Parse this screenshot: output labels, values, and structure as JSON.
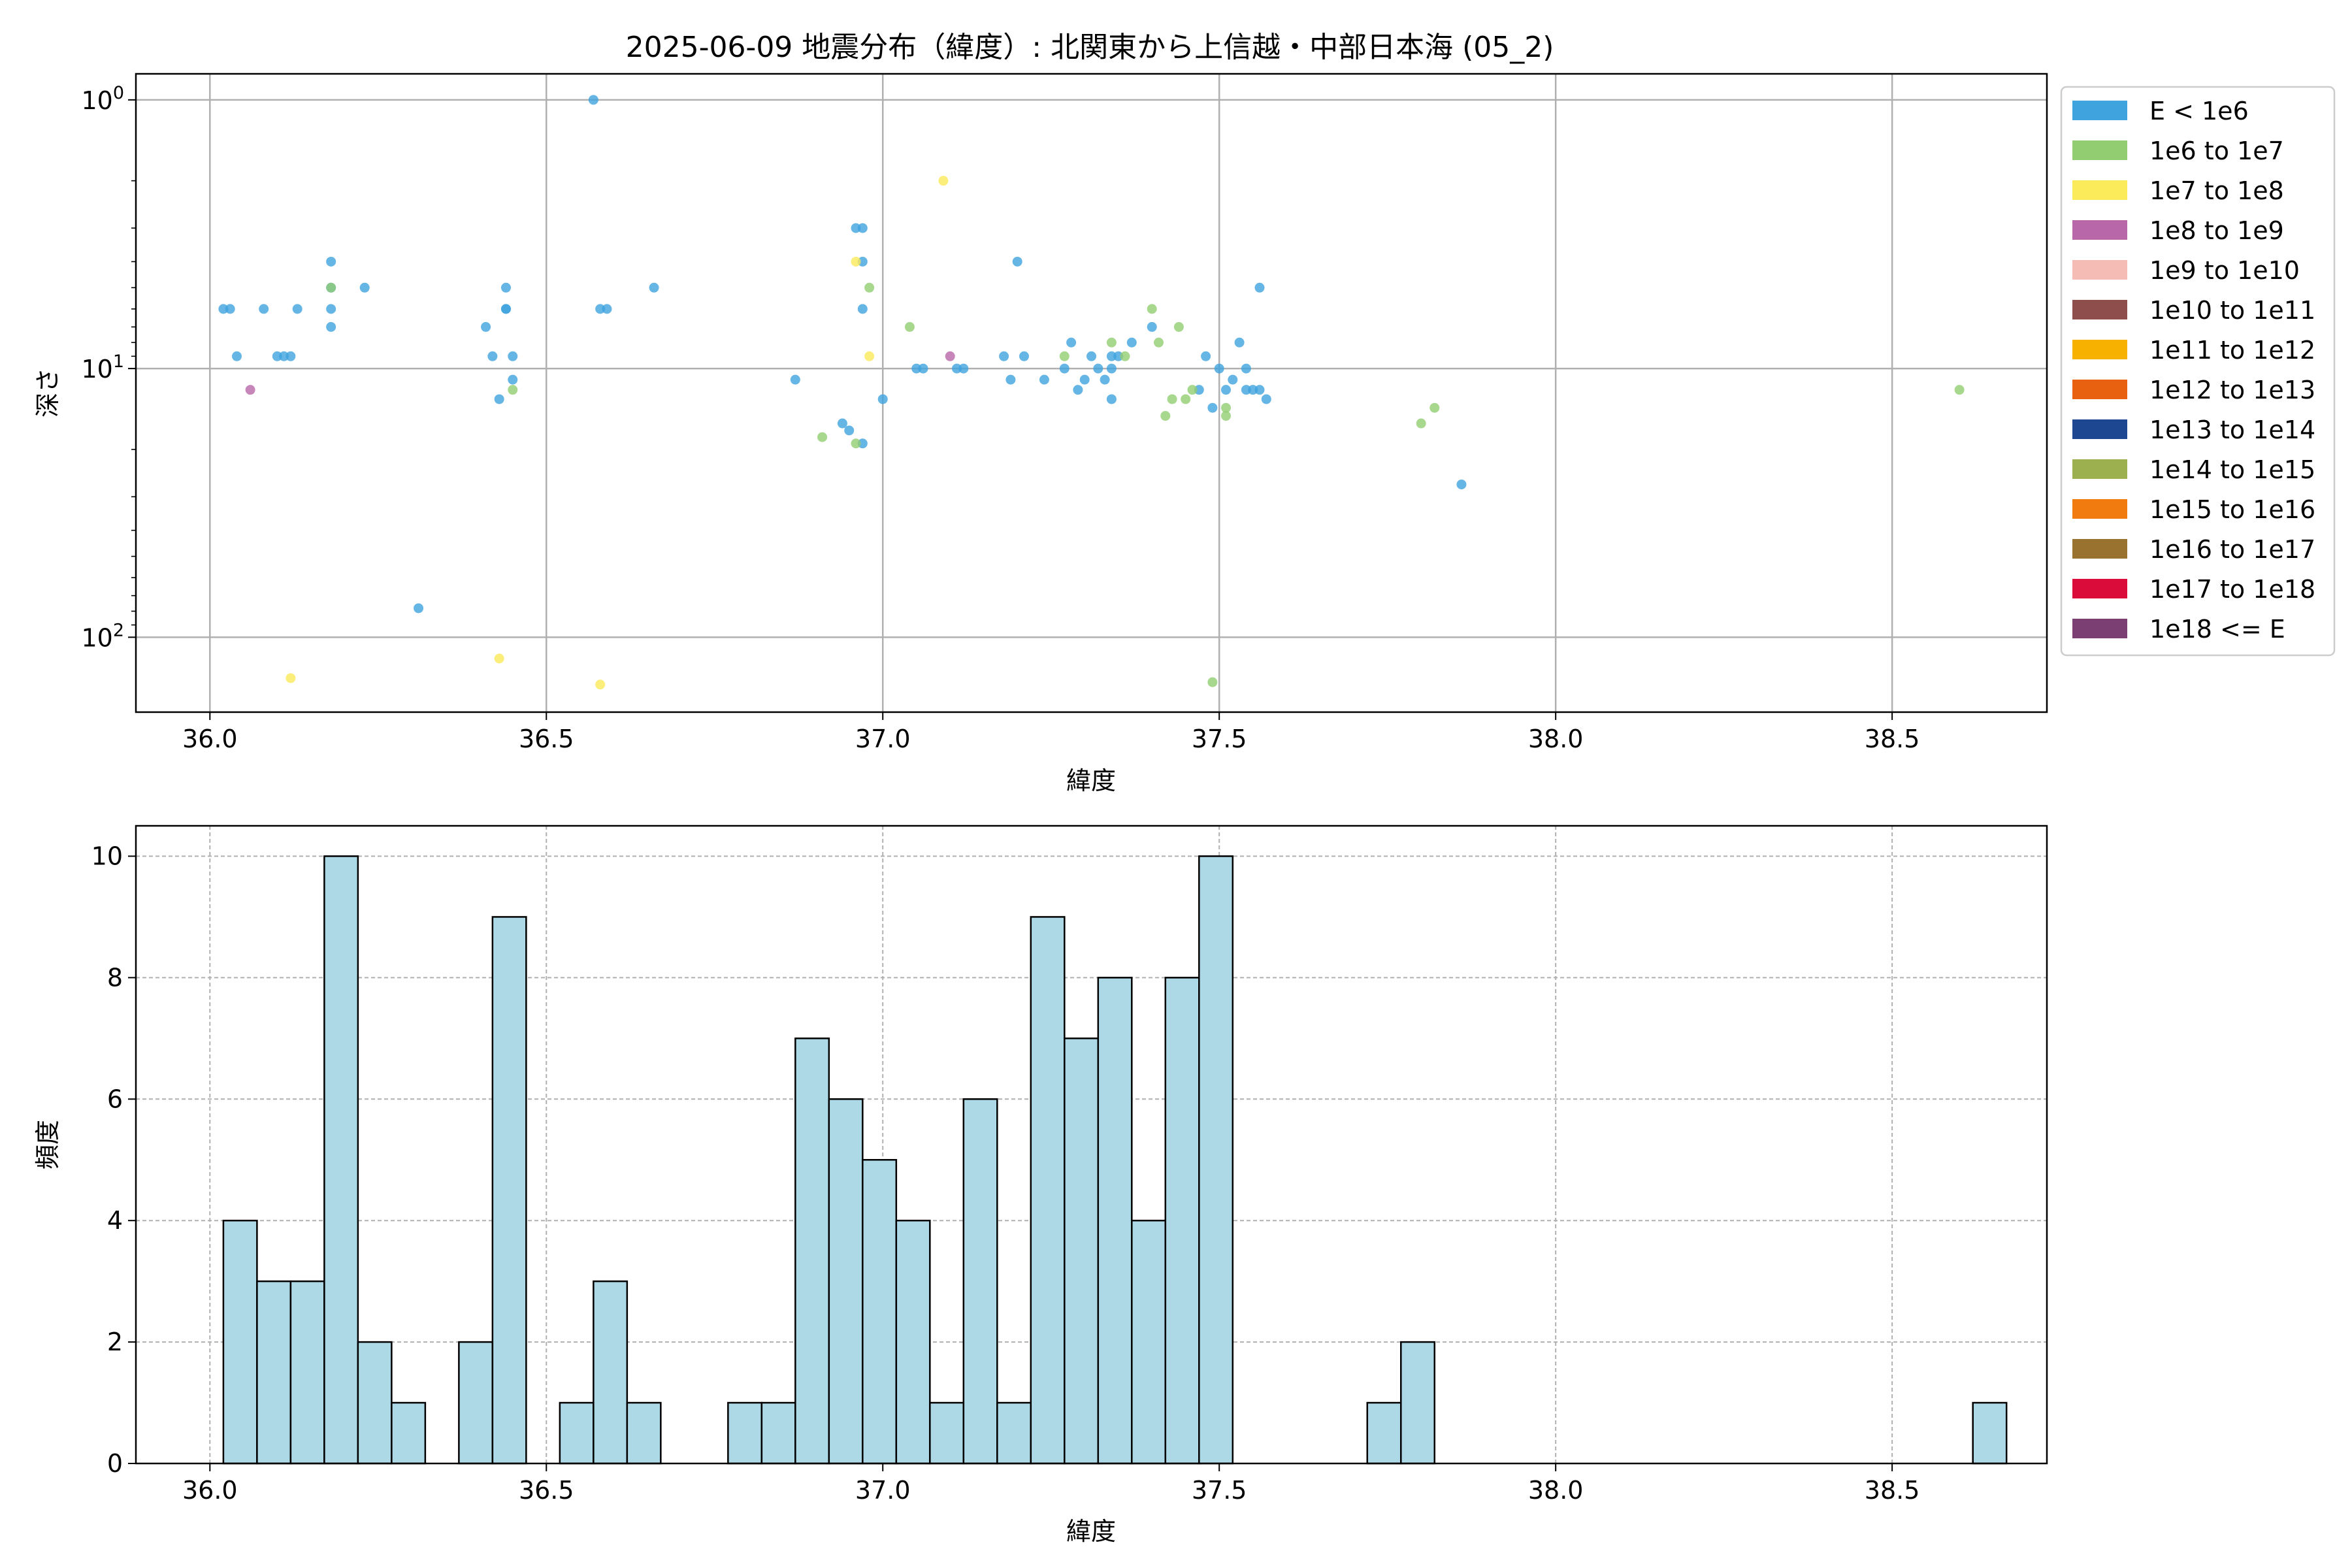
{
  "chart_data": [
    {
      "type": "scatter",
      "title": "2025-06-09 地震分布（緯度）: 北関東から上信越・中部日本海 (05_2)",
      "xlabel": "緯度",
      "ylabel": "深さ",
      "xlim": [
        35.89,
        38.73
      ],
      "ylim": [
        190,
        0.8
      ],
      "yscale": "log",
      "y_inverted": true,
      "grid": true,
      "legend_position": "outside-right",
      "xticks": [
        "36.0",
        "36.5",
        "37.0",
        "37.5",
        "38.0",
        "38.5"
      ],
      "xtick_values": [
        36.0,
        36.5,
        37.0,
        37.5,
        38.0,
        38.5
      ],
      "ytick_values": [
        1,
        10,
        100
      ],
      "ytick_labels": [
        {
          "base": "10",
          "exp": "0"
        },
        {
          "base": "10",
          "exp": "1"
        },
        {
          "base": "10",
          "exp": "2"
        }
      ],
      "legend": [
        {
          "label": "E < 1e6",
          "color": "#3fa3de"
        },
        {
          "label": "1e6 to 1e7",
          "color": "#92cd72"
        },
        {
          "label": "1e7 to 1e8",
          "color": "#fbea5a"
        },
        {
          "label": "1e8 to 1e9",
          "color": "#b868a8"
        },
        {
          "label": "1e9 to 1e10",
          "color": "#f5bcb6"
        },
        {
          "label": "1e10 to 1e11",
          "color": "#8e4e4b"
        },
        {
          "label": "1e11 to 1e12",
          "color": "#f7b100"
        },
        {
          "label": "1e12 to 1e13",
          "color": "#e86110"
        },
        {
          "label": "1e13 to 1e14",
          "color": "#1d4791"
        },
        {
          "label": "1e14 to 1e15",
          "color": "#9cb050"
        },
        {
          "label": "1e15 to 1e16",
          "color": "#f27b10"
        },
        {
          "label": "1e16 to 1e17",
          "color": "#997230"
        },
        {
          "label": "1e17 to 1e18",
          "color": "#da0c3a"
        },
        {
          "label": "1e18 <= E",
          "color": "#7b3f74"
        }
      ],
      "series": [
        {
          "name": "E < 1e6",
          "color": "#3fa3de",
          "points": [
            [
              36.02,
              6
            ],
            [
              36.03,
              6
            ],
            [
              36.04,
              9
            ],
            [
              36.08,
              6
            ],
            [
              36.1,
              9
            ],
            [
              36.11,
              9
            ],
            [
              36.12,
              9
            ],
            [
              36.13,
              6
            ],
            [
              36.18,
              4
            ],
            [
              36.18,
              5
            ],
            [
              36.18,
              6
            ],
            [
              36.18,
              7
            ],
            [
              36.23,
              5
            ],
            [
              36.31,
              78
            ],
            [
              36.41,
              7
            ],
            [
              36.42,
              9
            ],
            [
              36.43,
              13
            ],
            [
              36.44,
              5
            ],
            [
              36.44,
              6
            ],
            [
              36.45,
              9
            ],
            [
              36.45,
              11
            ],
            [
              36.44,
              6
            ],
            [
              36.57,
              1.0
            ],
            [
              36.58,
              6
            ],
            [
              36.59,
              6
            ],
            [
              36.66,
              5
            ],
            [
              36.87,
              11
            ],
            [
              36.94,
              16
            ],
            [
              36.95,
              17
            ],
            [
              36.96,
              3
            ],
            [
              36.97,
              3
            ],
            [
              36.97,
              4
            ],
            [
              36.97,
              6
            ],
            [
              36.97,
              19
            ],
            [
              37.0,
              13
            ],
            [
              37.05,
              10
            ],
            [
              37.06,
              10
            ],
            [
              37.11,
              10
            ],
            [
              37.12,
              10
            ],
            [
              37.18,
              9
            ],
            [
              37.19,
              11
            ],
            [
              37.2,
              4
            ],
            [
              37.21,
              9
            ],
            [
              37.24,
              11
            ],
            [
              37.27,
              10
            ],
            [
              37.28,
              8
            ],
            [
              37.29,
              12
            ],
            [
              37.3,
              11
            ],
            [
              37.31,
              9
            ],
            [
              37.32,
              10
            ],
            [
              37.33,
              11
            ],
            [
              37.34,
              9
            ],
            [
              37.34,
              10
            ],
            [
              37.34,
              13
            ],
            [
              37.35,
              9
            ],
            [
              37.37,
              8
            ],
            [
              37.4,
              7
            ],
            [
              37.47,
              12
            ],
            [
              37.48,
              9
            ],
            [
              37.49,
              14
            ],
            [
              37.5,
              10
            ],
            [
              37.51,
              12
            ],
            [
              37.52,
              11
            ],
            [
              37.53,
              8
            ],
            [
              37.54,
              10
            ],
            [
              37.54,
              12
            ],
            [
              37.55,
              12
            ],
            [
              37.56,
              5
            ],
            [
              37.56,
              12
            ],
            [
              37.57,
              13
            ],
            [
              37.86,
              27
            ]
          ]
        },
        {
          "name": "1e6 to 1e7",
          "color": "#92cd72",
          "points": [
            [
              36.18,
              5
            ],
            [
              36.45,
              12
            ],
            [
              36.91,
              18
            ],
            [
              36.96,
              19
            ],
            [
              36.98,
              5
            ],
            [
              37.04,
              7
            ],
            [
              37.27,
              9
            ],
            [
              37.34,
              8
            ],
            [
              37.36,
              9
            ],
            [
              37.4,
              6
            ],
            [
              37.41,
              8
            ],
            [
              37.42,
              15
            ],
            [
              37.43,
              13
            ],
            [
              37.44,
              7
            ],
            [
              37.45,
              13
            ],
            [
              37.46,
              12
            ],
            [
              37.51,
              15
            ],
            [
              37.51,
              14
            ],
            [
              37.8,
              16
            ],
            [
              37.82,
              14
            ],
            [
              37.49,
              147
            ],
            [
              38.6,
              12
            ]
          ]
        },
        {
          "name": "1e7 to 1e8",
          "color": "#fbea5a",
          "points": [
            [
              36.12,
              142
            ],
            [
              36.43,
              120
            ],
            [
              36.58,
              150
            ],
            [
              36.96,
              4
            ],
            [
              36.98,
              9
            ],
            [
              37.09,
              2
            ]
          ]
        },
        {
          "name": "1e8 to 1e9",
          "color": "#b868a8",
          "points": [
            [
              36.06,
              12
            ],
            [
              37.1,
              9
            ]
          ]
        }
      ]
    },
    {
      "type": "bar",
      "subtype": "histogram",
      "xlabel": "緯度",
      "ylabel": "頻度",
      "xlim": [
        35.89,
        38.73
      ],
      "ylim": [
        0,
        10.5
      ],
      "grid": true,
      "color": "#add8e6",
      "edgecolor": "#000000",
      "xticks": [
        "36.0",
        "36.5",
        "37.0",
        "37.5",
        "38.0",
        "38.5"
      ],
      "xtick_values": [
        36.0,
        36.5,
        37.0,
        37.5,
        38.0,
        38.5
      ],
      "yticks": [
        "0",
        "2",
        "4",
        "6",
        "8",
        "10"
      ],
      "ytick_values": [
        0,
        2,
        4,
        6,
        8,
        10
      ],
      "bin_start": 36.02,
      "bin_width": 0.05,
      "values": [
        4,
        3,
        3,
        10,
        2,
        1,
        0,
        2,
        9,
        0,
        1,
        3,
        1,
        0,
        0,
        1,
        1,
        7,
        6,
        5,
        4,
        1,
        6,
        1,
        9,
        7,
        8,
        4,
        8,
        10,
        0,
        0,
        0,
        0,
        1,
        2,
        0,
        0,
        0,
        0,
        0,
        0,
        0,
        0,
        0,
        0,
        0,
        0,
        0,
        0,
        0,
        0,
        1
      ]
    }
  ]
}
